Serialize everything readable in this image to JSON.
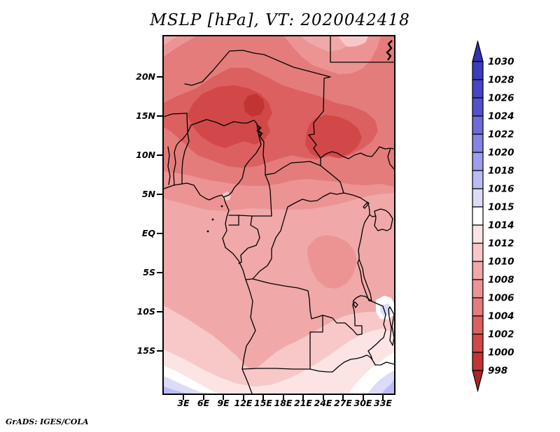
{
  "title": "MSLP [hPa], VT: 2020042418",
  "credit": "GrADS: IGES/COLA",
  "axes": {
    "lat_ticks": [
      "20N",
      "15N",
      "10N",
      "5N",
      "EQ",
      "5S",
      "10S",
      "15S"
    ],
    "lon_ticks": [
      "3E",
      "6E",
      "9E",
      "12E",
      "15E",
      "18E",
      "21E",
      "24E",
      "27E",
      "30E",
      "33E"
    ]
  },
  "colorbar": {
    "levels": [
      "998",
      "1000",
      "1002",
      "1004",
      "1006",
      "1008",
      "1010",
      "1012",
      "1014",
      "1015",
      "1016",
      "1018",
      "1020",
      "1022",
      "1024",
      "1026",
      "1028",
      "1030"
    ],
    "cell_colors": [
      "#aa2626",
      "#c23434",
      "#d24848",
      "#dc6060",
      "#e47c7c",
      "#ec9494",
      "#f0a8a8",
      "#f8c8c8",
      "#fce4e4",
      "#ffffff",
      "#dcdcf8",
      "#bcbcf4",
      "#9e9eee",
      "#8484e4",
      "#6c6cd8",
      "#5252cc",
      "#4646c6",
      "#3c3cbc",
      "#3232b2"
    ]
  },
  "chart_data": {
    "type": "heatmap",
    "subtype": "filled-contour-weather-map",
    "title": "MSLP [hPa], VT: 2020042418",
    "variable": "Mean sea level pressure (MSLP)",
    "units": "hPa",
    "valid_time": "2020042418",
    "region": "Central Africa",
    "lon_range_deg_east": [
      0,
      34.6
    ],
    "lat_range_deg": [
      -20.6,
      25.3
    ],
    "lon_tick_labels": [
      "3E",
      "6E",
      "9E",
      "12E",
      "15E",
      "18E",
      "21E",
      "24E",
      "27E",
      "30E",
      "33E"
    ],
    "lat_tick_labels": [
      "20N",
      "15N",
      "10N",
      "5N",
      "EQ",
      "5S",
      "10S",
      "15S"
    ],
    "contour_levels_hpa": [
      998,
      1000,
      1002,
      1004,
      1006,
      1008,
      1010,
      1012,
      1014,
      1015,
      1016,
      1018,
      1020,
      1022,
      1024,
      1026,
      1028,
      1030
    ],
    "palette_low_to_high": [
      "#aa2626",
      "#c23434",
      "#d24848",
      "#dc6060",
      "#e47c7c",
      "#ec9494",
      "#f0a8a8",
      "#f8c8c8",
      "#fce4e4",
      "#ffffff",
      "#dcdcf8",
      "#bcbcf4",
      "#9e9eee",
      "#8484e4",
      "#6c6cd8",
      "#5252cc",
      "#4646c6",
      "#3c3cbc",
      "#3232b2"
    ],
    "legend_position": "right",
    "grid": false,
    "field_summary": [
      {
        "region": "Sahel belt 11N-19N, 3E-17E (around Lake Chad)",
        "value_hpa": "1000-1004, deepest red heat low"
      },
      {
        "region": "Sudan 22E-30E, 9N-15N",
        "value_hpa": "1000-1004 second low core"
      },
      {
        "region": "Northern edge 21N-25N",
        "value_hpa": "1004-1008"
      },
      {
        "region": "Libya/Egypt corner strip near 25E-31E at top",
        "value_hpa": "1006-1010 lighter band"
      },
      {
        "region": "Guinea coast and Congo basin 5N-10S",
        "value_hpa": "1006-1010"
      },
      {
        "region": "Southern band 10S-15S",
        "value_hpa": "1010-1014"
      },
      {
        "region": "South-west corner (South Atlantic)",
        "value_hpa": "1014-1018 white to pale blue diagonal bands"
      },
      {
        "region": "South-east corner (Zimbabwe/Mozambique)",
        "value_hpa": "1014-1018 white to pale blue"
      }
    ]
  }
}
